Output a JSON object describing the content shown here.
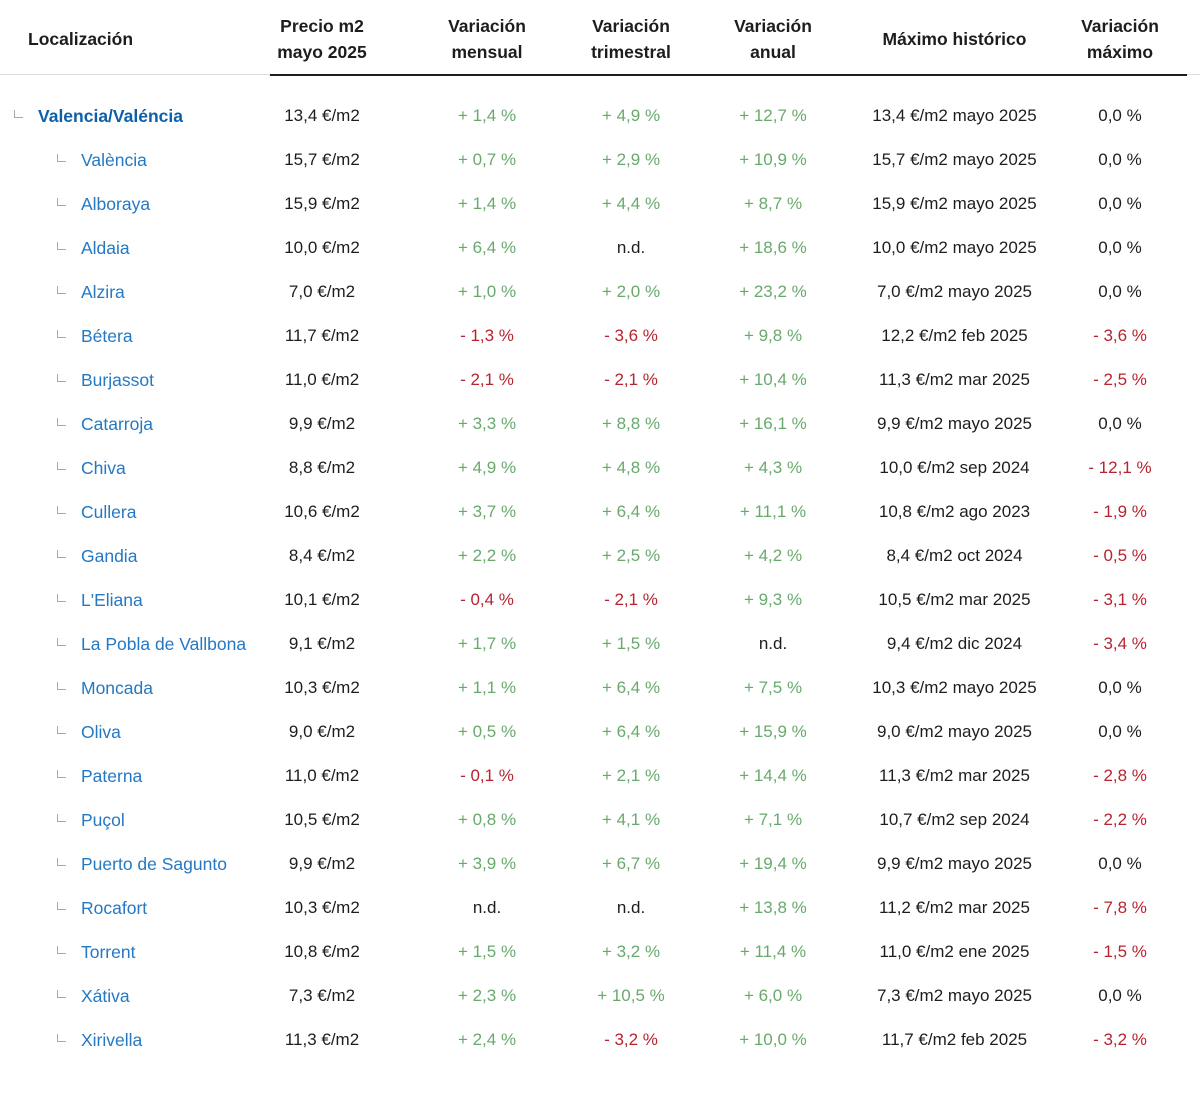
{
  "colors": {
    "text": "#1d1d1b",
    "positive": "#69a96d",
    "negative": "#b7232f",
    "parent_link": "#0d5fa9",
    "child_link": "#2478c4",
    "tree_icon": "#a8a8a8",
    "header_gray_rule": "#dcdcdc",
    "header_black_rule": "#1d1d1b"
  },
  "header": {
    "columns": [
      {
        "id": "location",
        "label": "Localización"
      },
      {
        "id": "price",
        "label": "Precio m2\nmayo 2025"
      },
      {
        "id": "monthly",
        "label": "Variación\nmensual"
      },
      {
        "id": "quarterly",
        "label": "Variación\ntrimestral"
      },
      {
        "id": "annual",
        "label": "Variación\nanual"
      },
      {
        "id": "max",
        "label": "Máximo histórico"
      },
      {
        "id": "max_var",
        "label": "Variación\nmáximo"
      }
    ]
  },
  "rows": [
    {
      "name": "Valencia/Valéncia",
      "level": 0,
      "price": "13,4 €/m2",
      "monthly": "+ 1,4 %",
      "quarterly": "+ 4,9 %",
      "annual": "+ 12,7 %",
      "max": "13,4 €/m2 mayo 2025",
      "max_var": "0,0 %"
    },
    {
      "name": "València",
      "level": 1,
      "price": "15,7 €/m2",
      "monthly": "+ 0,7 %",
      "quarterly": "+ 2,9 %",
      "annual": "+ 10,9 %",
      "max": "15,7 €/m2 mayo 2025",
      "max_var": "0,0 %"
    },
    {
      "name": "Alboraya",
      "level": 1,
      "price": "15,9 €/m2",
      "monthly": "+ 1,4 %",
      "quarterly": "+ 4,4 %",
      "annual": "+ 8,7 %",
      "max": "15,9 €/m2 mayo 2025",
      "max_var": "0,0 %"
    },
    {
      "name": "Aldaia",
      "level": 1,
      "price": "10,0 €/m2",
      "monthly": "+ 6,4 %",
      "quarterly": "n.d.",
      "annual": "+ 18,6 %",
      "max": "10,0 €/m2 mayo 2025",
      "max_var": "0,0 %"
    },
    {
      "name": "Alzira",
      "level": 1,
      "price": "7,0 €/m2",
      "monthly": "+ 1,0 %",
      "quarterly": "+ 2,0 %",
      "annual": "+ 23,2 %",
      "max": "7,0 €/m2 mayo 2025",
      "max_var": "0,0 %"
    },
    {
      "name": "Bétera",
      "level": 1,
      "price": "11,7 €/m2",
      "monthly": "- 1,3 %",
      "quarterly": "- 3,6 %",
      "annual": "+ 9,8 %",
      "max": "12,2 €/m2 feb 2025",
      "max_var": "- 3,6 %"
    },
    {
      "name": "Burjassot",
      "level": 1,
      "price": "11,0 €/m2",
      "monthly": "- 2,1 %",
      "quarterly": "- 2,1 %",
      "annual": "+ 10,4 %",
      "max": "11,3 €/m2 mar 2025",
      "max_var": "- 2,5 %"
    },
    {
      "name": "Catarroja",
      "level": 1,
      "price": "9,9 €/m2",
      "monthly": "+ 3,3 %",
      "quarterly": "+ 8,8 %",
      "annual": "+ 16,1 %",
      "max": "9,9 €/m2 mayo 2025",
      "max_var": "0,0 %"
    },
    {
      "name": "Chiva",
      "level": 1,
      "price": "8,8 €/m2",
      "monthly": "+ 4,9 %",
      "quarterly": "+ 4,8 %",
      "annual": "+ 4,3 %",
      "max": "10,0 €/m2 sep 2024",
      "max_var": "- 12,1 %"
    },
    {
      "name": "Cullera",
      "level": 1,
      "price": "10,6 €/m2",
      "monthly": "+ 3,7 %",
      "quarterly": "+ 6,4 %",
      "annual": "+ 11,1 %",
      "max": "10,8 €/m2 ago 2023",
      "max_var": "- 1,9 %"
    },
    {
      "name": "Gandia",
      "level": 1,
      "price": "8,4 €/m2",
      "monthly": "+ 2,2 %",
      "quarterly": "+ 2,5 %",
      "annual": "+ 4,2 %",
      "max": "8,4 €/m2 oct 2024",
      "max_var": "- 0,5 %"
    },
    {
      "name": "L'Eliana",
      "level": 1,
      "price": "10,1 €/m2",
      "monthly": "- 0,4 %",
      "quarterly": "- 2,1 %",
      "annual": "+ 9,3 %",
      "max": "10,5 €/m2 mar 2025",
      "max_var": "- 3,1 %"
    },
    {
      "name": "La Pobla de Vallbona",
      "level": 1,
      "price": "9,1 €/m2",
      "monthly": "+ 1,7 %",
      "quarterly": "+ 1,5 %",
      "annual": "n.d.",
      "max": "9,4 €/m2 dic 2024",
      "max_var": "- 3,4 %"
    },
    {
      "name": "Moncada",
      "level": 1,
      "price": "10,3 €/m2",
      "monthly": "+ 1,1 %",
      "quarterly": "+ 6,4 %",
      "annual": "+ 7,5 %",
      "max": "10,3 €/m2 mayo 2025",
      "max_var": "0,0 %"
    },
    {
      "name": "Oliva",
      "level": 1,
      "price": "9,0 €/m2",
      "monthly": "+ 0,5 %",
      "quarterly": "+ 6,4 %",
      "annual": "+ 15,9 %",
      "max": "9,0 €/m2 mayo 2025",
      "max_var": "0,0 %"
    },
    {
      "name": "Paterna",
      "level": 1,
      "price": "11,0 €/m2",
      "monthly": "- 0,1 %",
      "quarterly": "+ 2,1 %",
      "annual": "+ 14,4 %",
      "max": "11,3 €/m2 mar 2025",
      "max_var": "- 2,8 %"
    },
    {
      "name": "Puçol",
      "level": 1,
      "price": "10,5 €/m2",
      "monthly": "+ 0,8 %",
      "quarterly": "+ 4,1 %",
      "annual": "+ 7,1 %",
      "max": "10,7 €/m2 sep 2024",
      "max_var": "- 2,2 %"
    },
    {
      "name": "Puerto de Sagunto",
      "level": 1,
      "price": "9,9 €/m2",
      "monthly": "+ 3,9 %",
      "quarterly": "+ 6,7 %",
      "annual": "+ 19,4 %",
      "max": "9,9 €/m2 mayo 2025",
      "max_var": "0,0 %"
    },
    {
      "name": "Rocafort",
      "level": 1,
      "price": "10,3 €/m2",
      "monthly": "n.d.",
      "quarterly": "n.d.",
      "annual": "+ 13,8 %",
      "max": "11,2 €/m2 mar 2025",
      "max_var": "- 7,8 %"
    },
    {
      "name": "Torrent",
      "level": 1,
      "price": "10,8 €/m2",
      "monthly": "+ 1,5 %",
      "quarterly": "+ 3,2 %",
      "annual": "+ 11,4 %",
      "max": "11,0 €/m2 ene 2025",
      "max_var": "- 1,5 %"
    },
    {
      "name": "Xátiva",
      "level": 1,
      "price": "7,3 €/m2",
      "monthly": "+ 2,3 %",
      "quarterly": "+ 10,5 %",
      "annual": "+ 6,0 %",
      "max": "7,3 €/m2 mayo 2025",
      "max_var": "0,0 %"
    },
    {
      "name": "Xirivella",
      "level": 1,
      "price": "11,3 €/m2",
      "monthly": "+ 2,4 %",
      "quarterly": "- 3,2 %",
      "annual": "+ 10,0 %",
      "max": "11,7 €/m2 feb 2025",
      "max_var": "- 3,2 %"
    }
  ]
}
